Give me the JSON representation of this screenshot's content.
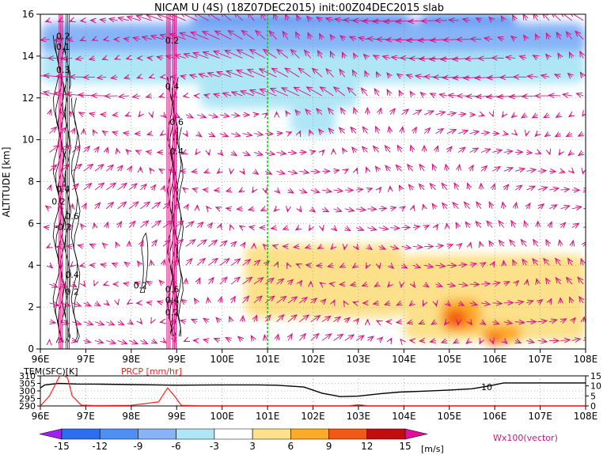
{
  "chart_data": [
    {
      "type": "heatmap",
      "title": "NICAM U (4S) (18Z07DEC2015) init:00Z04DEC2015 slab",
      "xlabel": "",
      "ylabel": "ALTITUDE [km]",
      "x_ticks": [
        "96E",
        "97E",
        "98E",
        "99E",
        "100E",
        "101E",
        "102E",
        "103E",
        "104E",
        "105E",
        "106E",
        "107E",
        "108E"
      ],
      "y_ticks": [
        "0",
        "2",
        "4",
        "6",
        "8",
        "10",
        "12",
        "14",
        "16"
      ],
      "xlim": [
        96,
        108
      ],
      "ylim": [
        0,
        16
      ],
      "grid": true,
      "reference_line_x": 101,
      "field_regions": [
        {
          "level": -9,
          "x": [
            99.3,
            104.2
          ],
          "y": [
            15.0,
            16.0
          ]
        },
        {
          "level": -9,
          "x": [
            104.3,
            106.5
          ],
          "y": [
            14.3,
            16.0
          ]
        },
        {
          "level": -6,
          "x": [
            96.0,
            108.0
          ],
          "y": [
            14.0,
            15.6
          ]
        },
        {
          "level": -6,
          "x": [
            98.2,
            100.4
          ],
          "y": [
            13.2,
            14.6
          ]
        },
        {
          "level": -6,
          "x": [
            103.2,
            107.0
          ],
          "y": [
            13.0,
            14.6
          ]
        },
        {
          "level": -3,
          "x": [
            96.0,
            108.0
          ],
          "y": [
            12.7,
            14.2
          ]
        },
        {
          "level": -3,
          "x": [
            99.5,
            103.0
          ],
          "y": [
            11.5,
            13.4
          ]
        },
        {
          "level": -3,
          "x": [
            101.5,
            102.5
          ],
          "y": [
            10.2,
            11.8
          ]
        },
        {
          "level": 3,
          "x": [
            100.5,
            104.0
          ],
          "y": [
            1.5,
            5.0
          ]
        },
        {
          "level": 3,
          "x": [
            104.0,
            108.0
          ],
          "y": [
            0.4,
            4.5
          ]
        },
        {
          "level": 6,
          "x": [
            104.8,
            105.7
          ],
          "y": [
            0.8,
            2.4
          ]
        },
        {
          "level": 6,
          "x": [
            105.7,
            106.6
          ],
          "y": [
            0.3,
            1.2
          ]
        },
        {
          "level": 9,
          "x": [
            104.9,
            105.4
          ],
          "y": [
            1.0,
            1.9
          ]
        },
        {
          "level": 9,
          "x": [
            105.8,
            106.2
          ],
          "y": [
            0.2,
            0.7
          ]
        }
      ],
      "contour_labels": [
        {
          "text": "0.2",
          "x": 96.5,
          "y": 14.8
        },
        {
          "text": "0.1",
          "x": 96.5,
          "y": 14.3
        },
        {
          "text": "0.3",
          "x": 96.5,
          "y": 13.2
        },
        {
          "text": "0.4",
          "x": 96.5,
          "y": 7.5
        },
        {
          "text": "0.2",
          "x": 96.4,
          "y": 6.9
        },
        {
          "text": "0.6",
          "x": 96.7,
          "y": 6.2
        },
        {
          "text": "-0.2",
          "x": 96.5,
          "y": 5.7
        },
        {
          "text": "0.4",
          "x": 96.7,
          "y": 3.4
        },
        {
          "text": "0.2",
          "x": 96.7,
          "y": 2.6
        },
        {
          "text": "0.2",
          "x": 98.2,
          "y": 2.9
        },
        {
          "text": "0.2",
          "x": 98.9,
          "y": 14.6
        },
        {
          "text": "0.4",
          "x": 98.9,
          "y": 12.4
        },
        {
          "text": "0.6",
          "x": 99.0,
          "y": 10.7
        },
        {
          "text": "0.4",
          "x": 99.0,
          "y": 9.3
        },
        {
          "text": "0.6",
          "x": 98.9,
          "y": 2.7
        },
        {
          "text": "0.4",
          "x": 98.9,
          "y": 2.2
        },
        {
          "text": "0.2",
          "x": 98.9,
          "y": 1.6
        }
      ],
      "colorbar": {
        "levels": [
          "-15",
          "-12",
          "-9",
          "-6",
          "-3",
          "3",
          "6",
          "9",
          "12",
          "15"
        ],
        "colors": [
          "#a020f0",
          "#2b6ff0",
          "#4d8ff2",
          "#86b4f6",
          "#aee6f6",
          "#ffffff",
          "#fde08a",
          "#fdab26",
          "#f25816",
          "#c00e0e",
          "#e0109b"
        ],
        "unit": "[m/s]",
        "vector_label": "Wx100(vector)"
      }
    },
    {
      "type": "line",
      "x_ticks": [
        "96E",
        "97E",
        "98E",
        "99E",
        "100E",
        "101E",
        "102E",
        "103E",
        "104E",
        "105E",
        "106E",
        "107E",
        "108E"
      ],
      "xlim": [
        96,
        108
      ],
      "series": [
        {
          "name": "TEM(SFC)[K]",
          "color": "#000000",
          "axis": "left",
          "ylim": [
            290,
            310
          ],
          "y_ticks": [
            "290",
            "295",
            "300",
            "305",
            "310"
          ],
          "x": [
            96.0,
            96.1,
            96.4,
            96.8,
            97.2,
            98.0,
            99.0,
            100.0,
            100.8,
            101.2,
            101.8,
            102.2,
            102.6,
            103.0,
            103.5,
            103.9,
            104.4,
            105.0,
            105.5,
            105.9,
            106.2,
            107.0,
            108.0
          ],
          "y": [
            302,
            304,
            305,
            304.6,
            304.5,
            304.2,
            303.8,
            304,
            304,
            303.8,
            302.6,
            298.5,
            296.2,
            296.5,
            298.2,
            299.2,
            299.8,
            300.6,
            301.4,
            303.5,
            305.3,
            305.3,
            305.3
          ]
        },
        {
          "name": "PRCP [mm/hr]",
          "color": "#ff2020",
          "axis": "right",
          "ylim": [
            0,
            15
          ],
          "y_ticks": [
            "0",
            "5",
            "10",
            "15"
          ],
          "x": [
            96.0,
            96.2,
            96.45,
            96.6,
            96.7,
            96.9,
            97.2,
            98.0,
            98.6,
            98.8,
            98.95,
            99.1,
            99.5,
            100.0,
            101.0,
            102.0,
            102.8,
            103.0,
            103.2,
            104.0,
            105.0,
            106.0,
            107.0,
            108.0
          ],
          "y": [
            0,
            5,
            16,
            14,
            5,
            0.4,
            0.2,
            0.3,
            2,
            9,
            5,
            0.3,
            0.1,
            0.1,
            0.1,
            0.1,
            0.1,
            0.6,
            0.1,
            0.1,
            0.1,
            0.1,
            0.1,
            0.1
          ]
        }
      ],
      "annotations": [
        "10"
      ]
    }
  ]
}
